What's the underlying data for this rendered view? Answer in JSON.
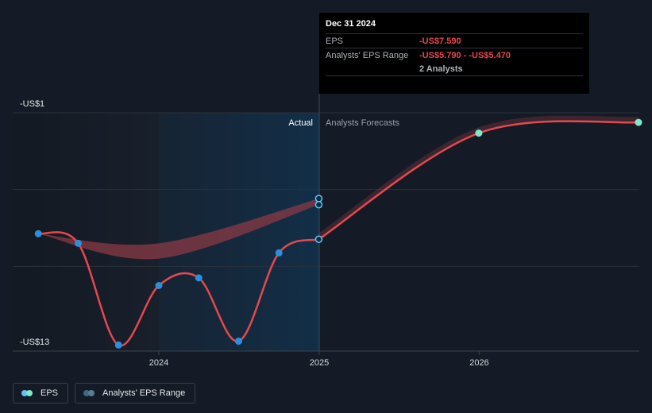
{
  "chart_data": {
    "type": "line",
    "y_axis": {
      "top_label": "-US$1",
      "bottom_label": "-US$13",
      "min": -13,
      "max": -1
    },
    "x_axis": {
      "ticks": [
        "2024",
        "2025",
        "2026"
      ]
    },
    "sections": {
      "actual": "Actual",
      "forecast": "Analysts Forecasts"
    },
    "series": [
      {
        "name": "EPS",
        "color": "#e5484d",
        "points": [
          {
            "x": "2023-04-01",
            "y": -7.3
          },
          {
            "x": "2023-07-01",
            "y": -7.8
          },
          {
            "x": "2023-10-01",
            "y": -13.1
          },
          {
            "x": "2024-01-01",
            "y": -10.0
          },
          {
            "x": "2024-04-01",
            "y": -9.6
          },
          {
            "x": "2024-07-01",
            "y": -12.9
          },
          {
            "x": "2024-10-01",
            "y": -8.3
          },
          {
            "x": "2024-12-31",
            "y": -7.59
          }
        ]
      },
      {
        "name": "EPS forecast",
        "color": "#e5484d",
        "points": [
          {
            "x": "2024-12-31",
            "y": -7.59
          },
          {
            "x": "2025-12-31",
            "y": -2.06
          },
          {
            "x": "2026-12-31",
            "y": -1.5
          }
        ]
      }
    ],
    "analysts_eps_range": {
      "name": "Analysts' EPS Range",
      "color": "#8a3a44",
      "points": [
        {
          "x": "2023-04-01",
          "low": -7.3,
          "high": -7.3
        },
        {
          "x": "2024-01-01",
          "low": -8.6,
          "high": -7.8
        },
        {
          "x": "2024-12-31",
          "low": -5.79,
          "high": -5.47
        }
      ]
    },
    "range_markers": [
      {
        "x": "2024-12-31",
        "y": -5.47
      },
      {
        "x": "2024-12-31",
        "y": -5.79
      }
    ]
  },
  "tooltip": {
    "date": "Dec 31 2024",
    "eps_label": "EPS",
    "eps_value": "-US$7.590",
    "range_label": "Analysts' EPS Range",
    "range_value": "-US$5.790 - -US$5.470",
    "analysts": "2 Analysts"
  },
  "legend": {
    "eps_label": "EPS",
    "range_label": "Analysts' EPS Range",
    "eps_color": "#5cc8f2",
    "range_color": "#3d6b80"
  }
}
